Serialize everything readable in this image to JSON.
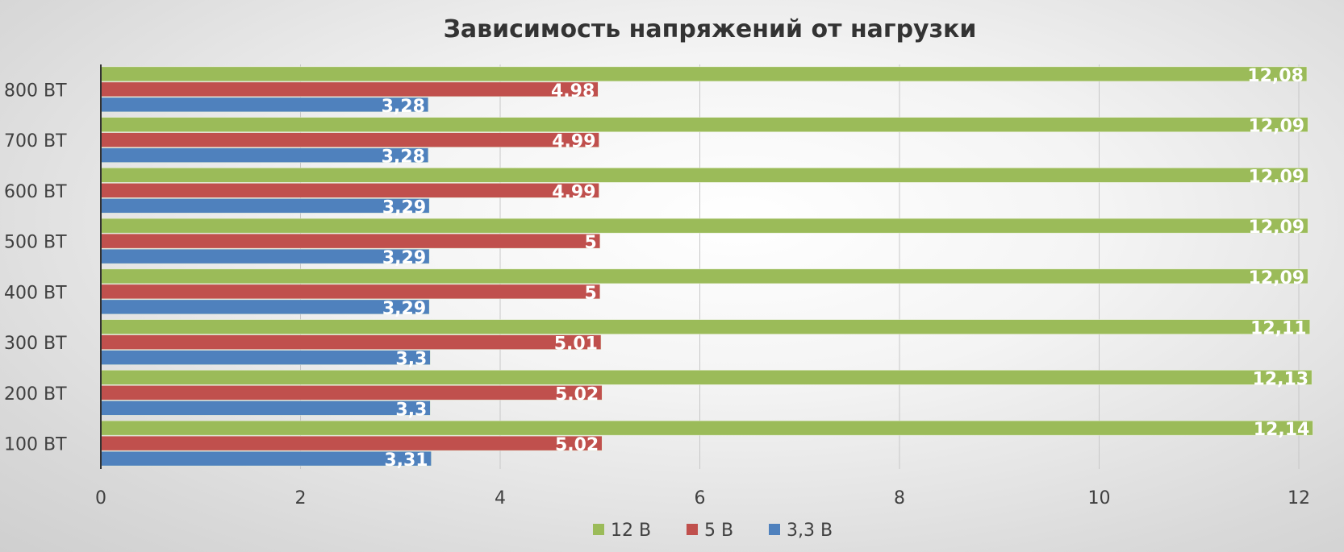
{
  "chart_data": {
    "type": "bar",
    "orientation": "horizontal",
    "title": "Зависимость напряжений от нагрузки",
    "categories": [
      "100 ВТ",
      "200 ВТ",
      "300 ВТ",
      "400 ВТ",
      "500 ВТ",
      "600 ВТ",
      "700 ВТ",
      "800 ВТ"
    ],
    "series": [
      {
        "name": "12 В",
        "color": "#9bbb59",
        "values": [
          12.14,
          12.13,
          12.11,
          12.09,
          12.09,
          12.09,
          12.09,
          12.08
        ],
        "labels": [
          "12,14",
          "12,13",
          "12,11",
          "12,09",
          "12,09",
          "12,09",
          "12,09",
          "12,08"
        ]
      },
      {
        "name": "5 В",
        "color": "#c0504d",
        "values": [
          5.02,
          5.02,
          5.01,
          5,
          5,
          4.99,
          4.99,
          4.98
        ],
        "labels": [
          "5.02",
          "5.02",
          "5.01",
          "5",
          "5",
          "4.99",
          "4.99",
          "4.98"
        ]
      },
      {
        "name": "3,3 В",
        "color": "#4f81bd",
        "values": [
          3.31,
          3.3,
          3.3,
          3.29,
          3.29,
          3.29,
          3.28,
          3.28
        ],
        "labels": [
          "3,31",
          "3,3",
          "3,3",
          "3,29",
          "3,29",
          "3,29",
          "3,28",
          "3,28"
        ]
      }
    ],
    "xlim": [
      0,
      12
    ],
    "xticks": [
      0,
      2,
      4,
      6,
      8,
      10,
      12
    ],
    "xlabel": "",
    "ylabel": "",
    "grid": true,
    "legend_position": "bottom"
  }
}
